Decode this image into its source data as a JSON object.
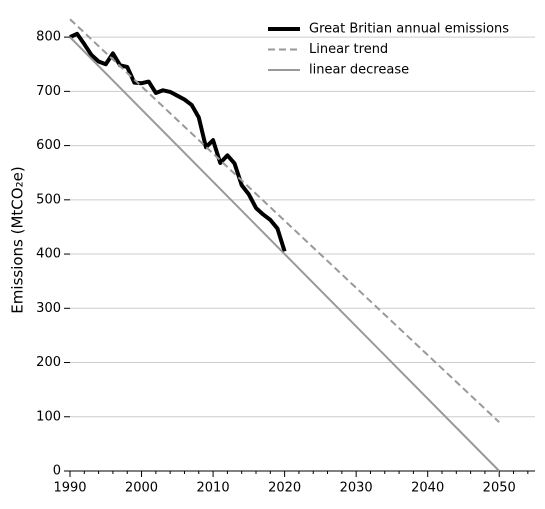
{
  "chart_data": {
    "type": "line",
    "ylabel": "Emissions (MtCO₂e)",
    "xlim": [
      1990,
      2055
    ],
    "ylim": [
      0,
      850
    ],
    "xticks": [
      1990,
      2000,
      2010,
      2020,
      2030,
      2040,
      2050
    ],
    "xminorticks": [
      1992,
      1994,
      1996,
      1998,
      2002,
      2004,
      2006,
      2008,
      2012,
      2014,
      2016,
      2018,
      2022,
      2024,
      2026,
      2028,
      2032,
      2034,
      2036,
      2038,
      2042,
      2044,
      2046,
      2048,
      2052,
      2054
    ],
    "yticks": [
      0,
      100,
      200,
      300,
      400,
      500,
      600,
      700,
      800
    ],
    "grid": true,
    "legend": "upper right",
    "series": [
      {
        "name": "Great Britian annual emissions",
        "color": "#000000",
        "linestyle": "solid",
        "linewidth": 4,
        "x": [
          1990,
          1991,
          1992,
          1993,
          1994,
          1995,
          1996,
          1997,
          1998,
          1999,
          2000,
          2001,
          2002,
          2003,
          2004,
          2005,
          2006,
          2007,
          2008,
          2009,
          2010,
          2011,
          2012,
          2013,
          2014,
          2015,
          2016,
          2017,
          2018,
          2019,
          2020
        ],
        "values": [
          800,
          806,
          787,
          767,
          755,
          750,
          770,
          748,
          745,
          716,
          715,
          718,
          697,
          702,
          699,
          692,
          685,
          675,
          652,
          597,
          610,
          568,
          582,
          567,
          527,
          510,
          485,
          473,
          463,
          447,
          405
        ]
      },
      {
        "name": "Linear trend",
        "color": "#999999",
        "linestyle": "dashed",
        "linewidth": 2,
        "x": [
          1990,
          2050
        ],
        "values": [
          833,
          90
        ]
      },
      {
        "name": "linear decrease",
        "color": "#999999",
        "linestyle": "solid",
        "linewidth": 2,
        "x": [
          1990,
          2050
        ],
        "values": [
          800,
          0
        ]
      }
    ]
  }
}
